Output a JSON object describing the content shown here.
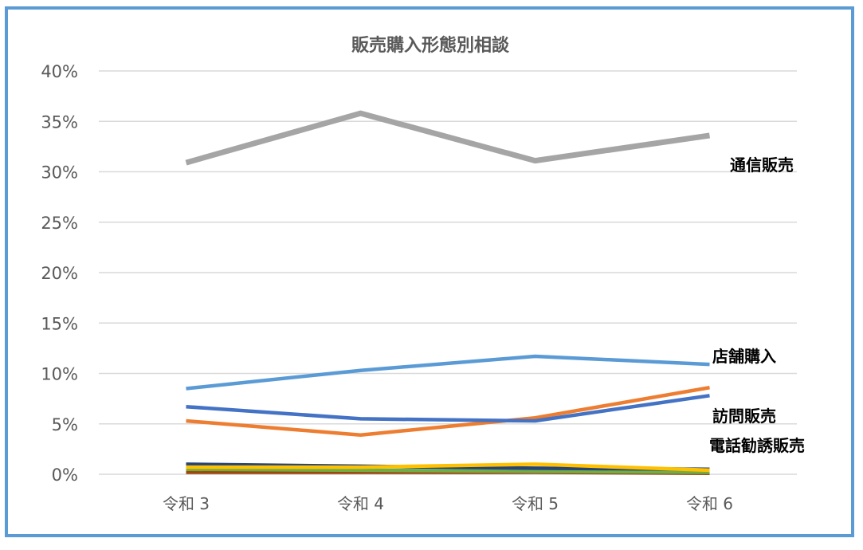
{
  "chart_data": {
    "type": "line",
    "title": "販売購入形態別相談",
    "xlabel": "",
    "ylabel": "",
    "categories": [
      "令和 3",
      "令和 4",
      "令和 5",
      "令和 6"
    ],
    "ylim": [
      0,
      40
    ],
    "yticks": [
      "0%",
      "5%",
      "10%",
      "15%",
      "20%",
      "25%",
      "30%",
      "35%",
      "40%"
    ],
    "grid": true,
    "series": [
      {
        "name": "通信販売",
        "color": "#a5a5a5",
        "values": [
          30.9,
          35.8,
          31.1,
          33.6
        ]
      },
      {
        "name": "店舗購入",
        "color": "#5b9bd5",
        "values": [
          8.5,
          10.3,
          11.7,
          10.9
        ]
      },
      {
        "name": "",
        "color": "#4472c4",
        "values": [
          6.7,
          5.5,
          5.3,
          7.8
        ]
      },
      {
        "name": "",
        "color": "#ed7d31",
        "values": [
          5.3,
          3.9,
          5.6,
          8.6
        ]
      },
      {
        "name": "",
        "color": "#ffc000",
        "values": [
          0.7,
          0.7,
          1.0,
          0.4
        ]
      },
      {
        "name": "",
        "color": "#264478",
        "values": [
          1.0,
          0.8,
          0.6,
          0.5
        ]
      },
      {
        "name": "",
        "color": "#70ad47",
        "values": [
          0.5,
          0.4,
          0.3,
          0.2
        ]
      },
      {
        "name": "",
        "color": "#9e480e",
        "values": [
          0.2,
          0.2,
          0.2,
          0.1
        ]
      }
    ],
    "annotations": [
      {
        "text": "通信販売",
        "series": 0
      },
      {
        "text": "店舗購入",
        "series": 1
      },
      {
        "text": "訪問販売",
        "series": 2
      },
      {
        "text": "電話勧誘販売",
        "series": 3
      }
    ]
  }
}
